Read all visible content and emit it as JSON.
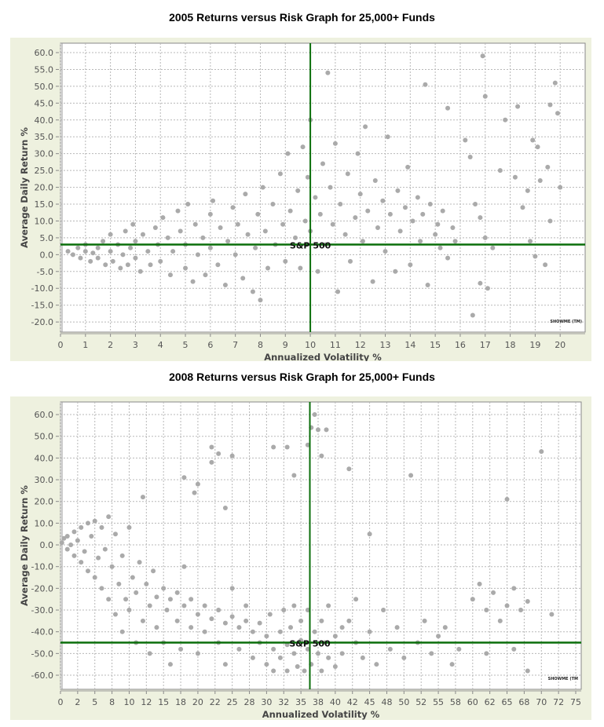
{
  "chart_data": [
    {
      "type": "scatter",
      "title": "2005 Returns versus Risk Graph for 25,000+ Funds",
      "xlabel": "Annualized Volatility %",
      "ylabel": "Average Daily Return %",
      "xlim": [
        0,
        21
      ],
      "ylim": [
        -23,
        62.8
      ],
      "x_ticks": [
        0,
        1,
        2,
        3,
        4,
        5,
        6,
        7,
        8,
        9,
        10,
        11,
        12,
        13,
        14,
        15,
        16,
        17,
        18,
        19,
        20
      ],
      "x_tick_labels": [
        "0",
        "1",
        "2",
        "3",
        "4",
        "5",
        "6",
        "7",
        "8",
        "9",
        "10",
        "11",
        "12",
        "13",
        "14",
        "15",
        "16",
        "17",
        "18",
        "19",
        "20"
      ],
      "y_ticks": [
        60,
        55,
        50,
        45,
        40,
        35,
        30,
        25,
        20,
        15,
        10,
        5,
        0,
        -5,
        -10,
        -15,
        -20
      ],
      "y_tick_labels": [
        "60.0",
        "55.0",
        "50.0",
        "45.0",
        "40.0",
        "35.0",
        "30.0",
        "25.0",
        "20.0",
        "15.0",
        "10.0",
        "5.0",
        "0.0",
        "-5.0",
        "-10.0",
        "-15.0",
        "-20.0"
      ],
      "grid": true,
      "point_color": "#aaaaaa",
      "reference_color": "#0a6e0a",
      "reference": {
        "label": "S&P 500",
        "x": 10,
        "y": 3
      },
      "watermark": "SHOWME (TM)",
      "points": [
        [
          0.3,
          1
        ],
        [
          0.5,
          0
        ],
        [
          0.7,
          2
        ],
        [
          0.8,
          -1
        ],
        [
          1,
          1
        ],
        [
          1,
          3
        ],
        [
          1.2,
          -2
        ],
        [
          1.3,
          0.5
        ],
        [
          1.5,
          2
        ],
        [
          1.5,
          -1
        ],
        [
          1.7,
          4
        ],
        [
          1.8,
          -3
        ],
        [
          2,
          1
        ],
        [
          2,
          6
        ],
        [
          2.1,
          -2
        ],
        [
          2.3,
          3
        ],
        [
          2.4,
          -4
        ],
        [
          2.5,
          0
        ],
        [
          2.6,
          7
        ],
        [
          2.7,
          -3
        ],
        [
          2.8,
          2
        ],
        [
          2.9,
          9
        ],
        [
          3,
          -1
        ],
        [
          3,
          4
        ],
        [
          3.2,
          -5
        ],
        [
          3.3,
          6
        ],
        [
          3.5,
          1
        ],
        [
          3.6,
          -3
        ],
        [
          3.8,
          8
        ],
        [
          3.9,
          3
        ],
        [
          4,
          -2
        ],
        [
          4.1,
          11
        ],
        [
          4.3,
          5
        ],
        [
          4.4,
          -6
        ],
        [
          4.5,
          1
        ],
        [
          4.7,
          13
        ],
        [
          4.8,
          7
        ],
        [
          5,
          -4
        ],
        [
          5,
          3
        ],
        [
          5.1,
          15
        ],
        [
          5.3,
          -8
        ],
        [
          5.4,
          9
        ],
        [
          5.5,
          0
        ],
        [
          5.7,
          5
        ],
        [
          5.8,
          -6
        ],
        [
          6,
          12
        ],
        [
          6,
          2
        ],
        [
          6.1,
          16
        ],
        [
          6.3,
          -3
        ],
        [
          6.4,
          8
        ],
        [
          6.6,
          -9
        ],
        [
          6.7,
          4
        ],
        [
          6.9,
          14
        ],
        [
          7,
          0
        ],
        [
          7.1,
          9
        ],
        [
          7.3,
          -7
        ],
        [
          7.4,
          18
        ],
        [
          7.5,
          6
        ],
        [
          7.7,
          -11
        ],
        [
          7.8,
          2
        ],
        [
          7.9,
          12
        ],
        [
          8,
          -13.5
        ],
        [
          8.1,
          20
        ],
        [
          8.2,
          7
        ],
        [
          8.3,
          -4
        ],
        [
          8.5,
          15
        ],
        [
          8.6,
          3
        ],
        [
          8.8,
          24
        ],
        [
          8.9,
          9
        ],
        [
          9,
          -2
        ],
        [
          9.1,
          30
        ],
        [
          9.2,
          13
        ],
        [
          9.4,
          5
        ],
        [
          9.5,
          19
        ],
        [
          9.6,
          -4
        ],
        [
          9.7,
          32
        ],
        [
          9.8,
          10
        ],
        [
          9.9,
          23
        ],
        [
          10,
          40
        ],
        [
          10,
          7
        ],
        [
          10.2,
          17
        ],
        [
          10.3,
          -5
        ],
        [
          10.4,
          12
        ],
        [
          10.5,
          27
        ],
        [
          10.6,
          3
        ],
        [
          10.8,
          20
        ],
        [
          10.9,
          9
        ],
        [
          11,
          33
        ],
        [
          11.1,
          -11
        ],
        [
          11.2,
          15
        ],
        [
          11.4,
          6
        ],
        [
          11.5,
          24
        ],
        [
          11.6,
          -2
        ],
        [
          11.8,
          11
        ],
        [
          11.9,
          30
        ],
        [
          12,
          18
        ],
        [
          12.1,
          4
        ],
        [
          12.2,
          38
        ],
        [
          12.3,
          13
        ],
        [
          12.5,
          -8
        ],
        [
          12.6,
          22
        ],
        [
          12.7,
          8
        ],
        [
          12.9,
          16
        ],
        [
          13,
          1
        ],
        [
          13.1,
          35
        ],
        [
          13.2,
          12
        ],
        [
          13.4,
          -5
        ],
        [
          13.5,
          19
        ],
        [
          13.6,
          7
        ],
        [
          13.8,
          14
        ],
        [
          13.9,
          26
        ],
        [
          14,
          -3
        ],
        [
          14.1,
          10
        ],
        [
          14.3,
          17
        ],
        [
          14.4,
          4
        ],
        [
          14.5,
          12
        ],
        [
          14.6,
          50.5
        ],
        [
          14.7,
          -9
        ],
        [
          14.8,
          15
        ],
        [
          15,
          6
        ],
        [
          15.1,
          9
        ],
        [
          15.2,
          2
        ],
        [
          15.3,
          13
        ],
        [
          15.5,
          43.5
        ],
        [
          15.5,
          -1
        ],
        [
          15.7,
          8
        ],
        [
          15.8,
          4
        ],
        [
          10.7,
          54
        ],
        [
          16.9,
          59
        ],
        [
          17,
          47
        ],
        [
          16.2,
          34
        ],
        [
          16.4,
          29
        ],
        [
          16.5,
          -18
        ],
        [
          16.8,
          -8.5
        ],
        [
          17.1,
          -10
        ],
        [
          16.6,
          15
        ],
        [
          16.8,
          11
        ],
        [
          17,
          5
        ],
        [
          17.3,
          2
        ],
        [
          17.6,
          25
        ],
        [
          18.3,
          44
        ],
        [
          17.8,
          40
        ],
        [
          18.9,
          34
        ],
        [
          19.1,
          32
        ],
        [
          18.5,
          14
        ],
        [
          18.8,
          4
        ],
        [
          19,
          -0.5
        ],
        [
          19.4,
          -3
        ],
        [
          19.6,
          44.5
        ],
        [
          19.8,
          51
        ],
        [
          19.9,
          42
        ],
        [
          20,
          20
        ],
        [
          19.6,
          10
        ],
        [
          19.5,
          26
        ],
        [
          18.2,
          23
        ],
        [
          18.7,
          19
        ],
        [
          19.2,
          22
        ]
      ]
    },
    {
      "type": "scatter",
      "title": "2008 Returns versus Risk Graph for 25,000+ Funds",
      "xlabel": "Annualized Volatility %",
      "ylabel": "Average Daily Return %",
      "xlim": [
        0,
        75.8
      ],
      "ylim": [
        -66.5,
        65.8
      ],
      "x_ticks": [
        0,
        2.5,
        5,
        7.5,
        10,
        12.5,
        15,
        17.5,
        20,
        22.5,
        25,
        27.5,
        30,
        32.5,
        35,
        37.5,
        40,
        42.5,
        45,
        47.5,
        50,
        52.5,
        55,
        57.5,
        60,
        62.5,
        65,
        67.5,
        70,
        72.5,
        75
      ],
      "x_tick_labels": [
        "0",
        "2",
        "5",
        "8",
        "10",
        "12",
        "15",
        "18",
        "20",
        "22",
        "25",
        "28",
        "30",
        "32",
        "35",
        "38",
        "40",
        "42",
        "45",
        "48",
        "50",
        "52",
        "55",
        "58",
        "60",
        "62",
        "65",
        "68",
        "70",
        "72",
        "75"
      ],
      "y_ticks": [
        60,
        50,
        40,
        30,
        20,
        10,
        0,
        -10,
        -20,
        -30,
        -40,
        -50,
        -60
      ],
      "y_tick_labels": [
        "60.0",
        "50.0",
        "40.0",
        "30.0",
        "20.0",
        "10.0",
        "0.0",
        "-10.0",
        "-20.0",
        "-30.0",
        "-40.0",
        "-50.0",
        "-60.0"
      ],
      "grid": true,
      "point_color": "#aaaaaa",
      "reference_color": "#0a6e0a",
      "reference": {
        "label": "S&P 500",
        "x": 36.3,
        "y": -45
      },
      "watermark": "SHOWME (TM",
      "points": [
        [
          0.2,
          1
        ],
        [
          0.5,
          3
        ],
        [
          1,
          -2
        ],
        [
          1,
          4
        ],
        [
          1.5,
          0
        ],
        [
          2,
          6
        ],
        [
          2,
          -5
        ],
        [
          2.5,
          2
        ],
        [
          3,
          -8
        ],
        [
          3,
          8
        ],
        [
          3.5,
          -3
        ],
        [
          4,
          10
        ],
        [
          4,
          -12
        ],
        [
          4.5,
          4
        ],
        [
          5,
          -15
        ],
        [
          5,
          11
        ],
        [
          5.5,
          -6
        ],
        [
          6,
          8
        ],
        [
          6,
          -20
        ],
        [
          6.5,
          -2
        ],
        [
          7,
          13
        ],
        [
          7,
          -25
        ],
        [
          7.5,
          -10
        ],
        [
          8,
          5
        ],
        [
          8,
          -32
        ],
        [
          8.5,
          -18
        ],
        [
          9,
          -5
        ],
        [
          9,
          -40
        ],
        [
          9.5,
          -25
        ],
        [
          10,
          8
        ],
        [
          10,
          -30
        ],
        [
          10.5,
          -15
        ],
        [
          11,
          -45
        ],
        [
          11,
          -22
        ],
        [
          11.5,
          -8
        ],
        [
          12,
          -35
        ],
        [
          12,
          22
        ],
        [
          12.5,
          -18
        ],
        [
          13,
          -50
        ],
        [
          13,
          -28
        ],
        [
          13.5,
          -12
        ],
        [
          14,
          -38
        ],
        [
          14,
          -24
        ],
        [
          15,
          -20
        ],
        [
          15,
          -45
        ],
        [
          15.5,
          -30
        ],
        [
          16,
          -55
        ],
        [
          16,
          -25
        ],
        [
          17,
          -35
        ],
        [
          17,
          -22
        ],
        [
          17.5,
          -48
        ],
        [
          18,
          -28
        ],
        [
          18,
          -10
        ],
        [
          19,
          -38
        ],
        [
          19,
          -25
        ],
        [
          20,
          -32
        ],
        [
          20,
          -50
        ],
        [
          21,
          -28
        ],
        [
          21,
          -40
        ],
        [
          22,
          -34
        ],
        [
          22,
          45
        ],
        [
          22,
          38
        ],
        [
          23,
          -30
        ],
        [
          23,
          -45
        ],
        [
          24,
          -36
        ],
        [
          24,
          -55
        ],
        [
          25,
          -33
        ],
        [
          25,
          -20
        ],
        [
          26,
          -38
        ],
        [
          26,
          -48
        ],
        [
          27,
          -35
        ],
        [
          27,
          -28
        ],
        [
          28,
          -40
        ],
        [
          28,
          -52
        ],
        [
          29,
          -36
        ],
        [
          29,
          -45
        ],
        [
          30,
          -42
        ],
        [
          30,
          -55
        ],
        [
          30.5,
          -32
        ],
        [
          31,
          -48
        ],
        [
          31,
          -58
        ],
        [
          31,
          45
        ],
        [
          32,
          -40
        ],
        [
          32,
          -52
        ],
        [
          32.5,
          -30
        ],
        [
          33,
          -46
        ],
        [
          33,
          -58
        ],
        [
          33.5,
          -38
        ],
        [
          34,
          -50
        ],
        [
          34,
          -28
        ],
        [
          34.5,
          -56
        ],
        [
          35,
          -44
        ],
        [
          35,
          -35
        ],
        [
          35.5,
          -58
        ],
        [
          36,
          -48
        ],
        [
          36,
          -30
        ],
        [
          36.5,
          54
        ],
        [
          36.5,
          -55
        ],
        [
          37,
          -40
        ],
        [
          37,
          60
        ],
        [
          37.5,
          -50
        ],
        [
          38,
          -35
        ],
        [
          38,
          -58
        ],
        [
          38.5,
          -45
        ],
        [
          39,
          -52
        ],
        [
          39,
          -28
        ],
        [
          40,
          -42
        ],
        [
          40,
          -56
        ],
        [
          41,
          -38
        ],
        [
          41,
          -50
        ],
        [
          42,
          -35
        ],
        [
          42,
          35
        ],
        [
          43,
          -45
        ],
        [
          43,
          -25
        ],
        [
          44,
          -52
        ],
        [
          45,
          -40
        ],
        [
          45,
          5
        ],
        [
          46,
          -55
        ],
        [
          47,
          -30
        ],
        [
          48,
          -48
        ],
        [
          49,
          -38
        ],
        [
          50,
          -52
        ],
        [
          51,
          32
        ],
        [
          52,
          -45
        ],
        [
          53,
          -35
        ],
        [
          54,
          -50
        ],
        [
          55,
          -42
        ],
        [
          56,
          -38
        ],
        [
          57,
          -55
        ],
        [
          58,
          -48
        ],
        [
          60,
          -25
        ],
        [
          61,
          -18
        ],
        [
          62,
          -30
        ],
        [
          62,
          -50
        ],
        [
          63,
          -22
        ],
        [
          64,
          -35
        ],
        [
          65,
          -28
        ],
        [
          65,
          21
        ],
        [
          66,
          -20
        ],
        [
          66,
          -48
        ],
        [
          67,
          -30
        ],
        [
          68,
          -26
        ],
        [
          70,
          43
        ],
        [
          71.5,
          -32
        ],
        [
          68,
          -58
        ],
        [
          18,
          31
        ],
        [
          20,
          28
        ],
        [
          25,
          41
        ],
        [
          23,
          42
        ],
        [
          19.5,
          24
        ],
        [
          24,
          17
        ],
        [
          34,
          32
        ],
        [
          38,
          41
        ],
        [
          36,
          46
        ],
        [
          37.5,
          53
        ],
        [
          38.7,
          53
        ],
        [
          33,
          45
        ]
      ]
    }
  ]
}
